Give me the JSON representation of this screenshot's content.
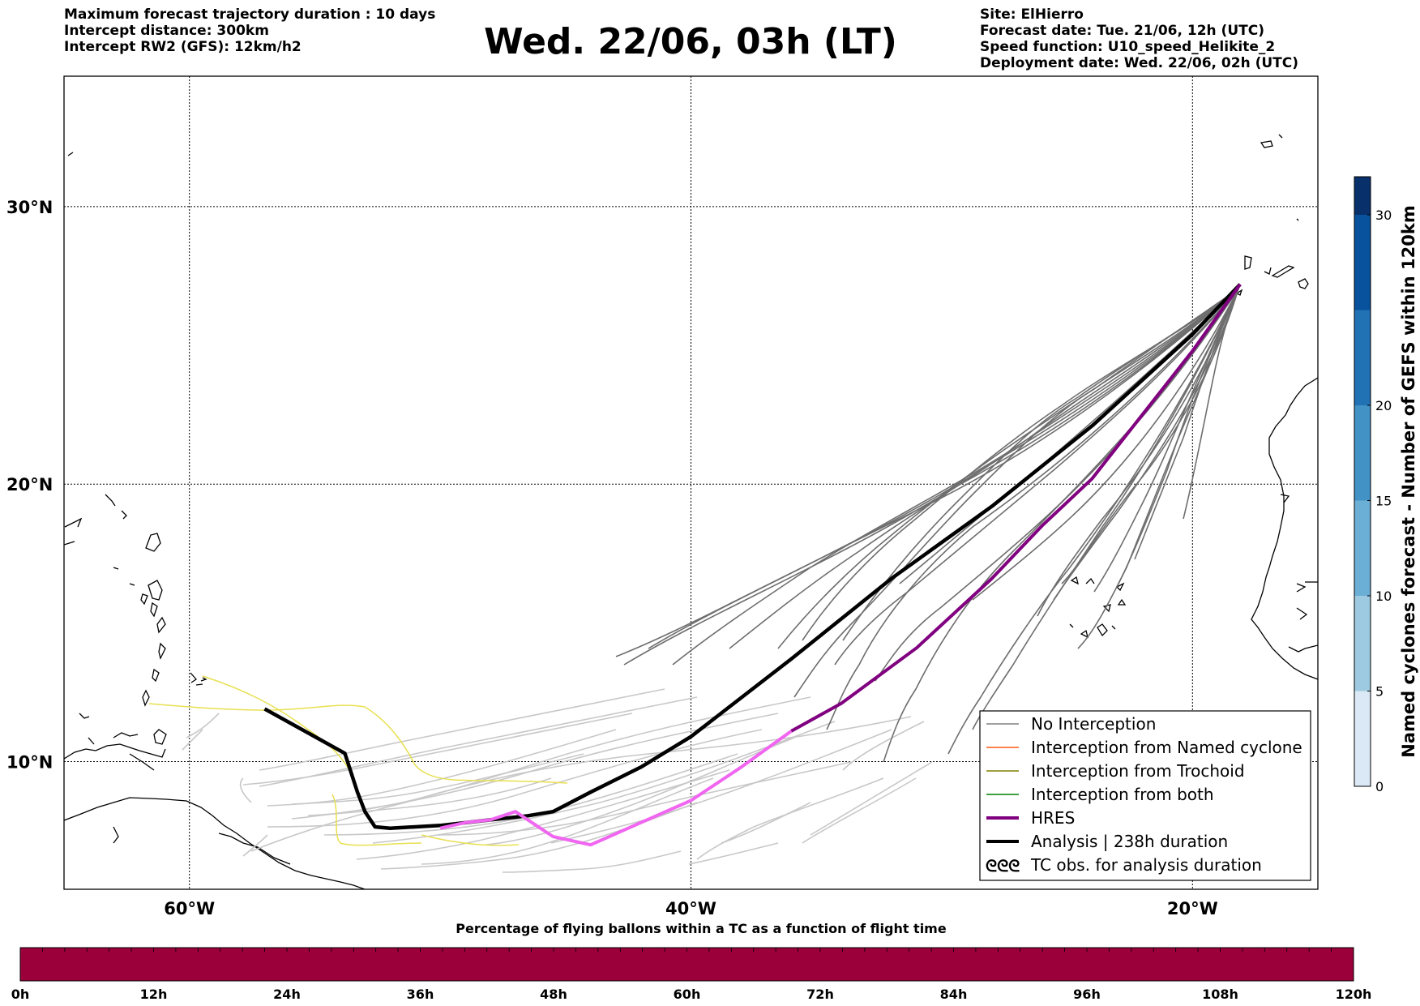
{
  "header": {
    "left": {
      "max_duration": "Maximum forecast trajectory duration : 10 days",
      "intercept_distance": "Intercept distance: 300km",
      "intercept_rw2": "Intercept RW2 (GFS):  12km/h2"
    },
    "title": "Wed. 22/06, 03h (LT)",
    "right": {
      "site": "Site: ElHierro",
      "forecast_date": "Forecast date: Tue. 21/06, 12h (UTC)",
      "speed_function": "Speed function: U10_speed_Helikite_2",
      "deployment_date": "Deployment date: Wed. 22/06, 02h (UTC)"
    }
  },
  "map": {
    "lon_range": [
      -65,
      15
    ],
    "lat_range": [
      5.4,
      34.7
    ],
    "lon_ticks": [
      {
        "value": -60,
        "label": "60°W"
      },
      {
        "value": -40,
        "label": "40°W"
      },
      {
        "value": -20,
        "label": "20°W"
      }
    ],
    "lat_ticks": [
      {
        "value": 30,
        "label": "30°N"
      },
      {
        "value": 20,
        "label": "20°N"
      },
      {
        "value": 10,
        "label": "10°N"
      }
    ]
  },
  "legend": {
    "items": [
      {
        "label": "No Interception",
        "color": "#808080",
        "style": "line-thin"
      },
      {
        "label": "Interception from Named cyclone",
        "color": "#ff5a14",
        "style": "line-thin"
      },
      {
        "label": "Interception from Trochoid",
        "color": "#808000",
        "style": "line-thin"
      },
      {
        "label": "Interception from both",
        "color": "#008000",
        "style": "line-thin"
      },
      {
        "label": "HRES",
        "color": "#800080",
        "style": "line-thick"
      },
      {
        "label": "Analysis | 238h duration",
        "color": "#000000",
        "style": "line-thick"
      },
      {
        "label": "TC obs. for analysis duration",
        "color": "#000000",
        "style": "cyclone-symbols"
      }
    ]
  },
  "colorbar_right": {
    "label": "Named cyclones forecast - Number of GEFS within 120km",
    "ticks": [
      0,
      5,
      10,
      15,
      20,
      30
    ],
    "range": [
      0,
      32
    ],
    "colors": [
      "#dbe9f6",
      "#9ecae1",
      "#6baed6",
      "#4292c6",
      "#2171b5",
      "#08519c",
      "#08306b"
    ]
  },
  "colorbar_bottom": {
    "title": "Percentage of flying ballons within a TC as a function of flight time",
    "color": "#9b003a",
    "ticks": [
      "0h",
      "12h",
      "24h",
      "36h",
      "48h",
      "60h",
      "72h",
      "84h",
      "96h",
      "108h",
      "120h"
    ]
  },
  "trajectories": {
    "analysis": {
      "color": "#000000",
      "points": [
        [
          -18.1,
          27.2
        ],
        [
          -20.0,
          25.4
        ],
        [
          -24.0,
          22.1
        ],
        [
          -28.0,
          19.2
        ],
        [
          -32.0,
          16.6
        ],
        [
          -36.0,
          13.7
        ],
        [
          -40.0,
          10.9
        ],
        [
          -42.0,
          9.8
        ],
        [
          -44.0,
          8.9
        ],
        [
          -45.5,
          8.2
        ],
        [
          -46.5,
          8.05
        ],
        [
          -48.0,
          7.9
        ],
        [
          -50.0,
          7.7
        ],
        [
          -52.0,
          7.6
        ],
        [
          -52.6,
          7.65
        ],
        [
          -53.0,
          8.2
        ],
        [
          -53.3,
          8.9
        ],
        [
          -53.8,
          10.3
        ],
        [
          -56.0,
          11.4
        ],
        [
          -57.0,
          11.9
        ]
      ]
    },
    "hres": {
      "color": "#800080",
      "points": [
        [
          -18.1,
          27.2
        ],
        [
          -20.0,
          24.8
        ],
        [
          -22.0,
          22.5
        ],
        [
          -24.0,
          20.2
        ],
        [
          -26.0,
          18.5
        ],
        [
          -28.0,
          16.6
        ],
        [
          -31.0,
          14.1
        ],
        [
          -34.0,
          12.1
        ],
        [
          -36.0,
          11.1
        ]
      ]
    },
    "hres_pink": {
      "color": "#f066f0",
      "points": [
        [
          -36.0,
          11.1
        ],
        [
          -38.0,
          9.8
        ],
        [
          -40.0,
          8.6
        ],
        [
          -42.0,
          7.8
        ],
        [
          -44.0,
          7.0
        ],
        [
          -45.5,
          7.3
        ],
        [
          -47.0,
          8.2
        ],
        [
          -48.0,
          7.9
        ],
        [
          -49.0,
          7.8
        ],
        [
          -50.0,
          7.6
        ]
      ]
    }
  }
}
